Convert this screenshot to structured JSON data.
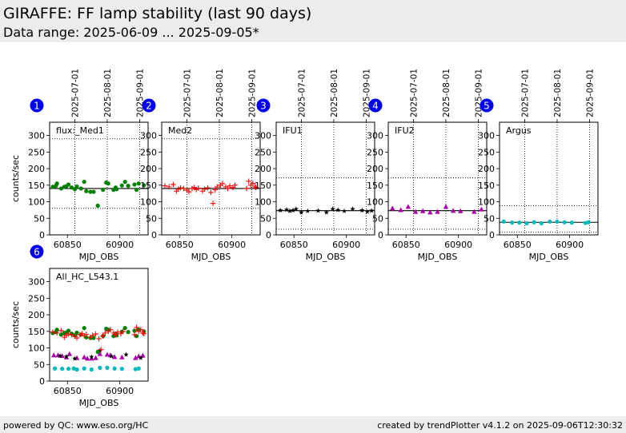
{
  "header": {
    "title": "GIRAFFE: FF lamp stability (last 90 days)",
    "subtitle": "Data range: 2025-06-09 ... 2025-09-05*"
  },
  "footer": {
    "left": "powered by QC: www.eso.org/HC",
    "right": "created by trendPlotter v4.1.2 on 2025-09-06T12:30:32"
  },
  "colors": {
    "med1": "#008000",
    "med2": "#ff0000",
    "ifu1": "#000000",
    "ifu2": "#aa00aa",
    "argus": "#00bbbb",
    "badge": "#0000ee",
    "header_bg": "#ececec"
  },
  "chart_data": [
    {
      "type": "scatter",
      "badge": "1",
      "label": "flux:_Med1",
      "xlabel": "MJD_OBS",
      "ylabel": "counts/sec",
      "xlim": [
        60833,
        60927
      ],
      "ylim": [
        0,
        340
      ],
      "xticks": [
        60850,
        60900
      ],
      "yticks": [
        0,
        50,
        100,
        150,
        200,
        250,
        300
      ],
      "date_ticks": [
        {
          "mjd": 60857,
          "label": "2025-07-01"
        },
        {
          "mjd": 60888,
          "label": "2025-08-01"
        },
        {
          "mjd": 60919,
          "label": "2025-09-01"
        }
      ],
      "hlines": [
        {
          "y": 140,
          "style": "solid"
        },
        {
          "y": 290,
          "style": "dotted"
        },
        {
          "y": 80,
          "style": "dotted"
        }
      ],
      "series": [
        {
          "color_key": "med1",
          "marker": "dot",
          "x": [
            60836,
            60839,
            60840,
            60844,
            60847,
            60849,
            60851,
            60854,
            60857,
            60859,
            60863,
            60866,
            60868,
            60872,
            60875,
            60879,
            60884,
            60887,
            60889,
            60894,
            60896,
            60897,
            60902,
            60905,
            60908,
            60914,
            60916,
            60918,
            60923
          ],
          "y": [
            145,
            148,
            155,
            140,
            145,
            147,
            152,
            143,
            138,
            146,
            140,
            160,
            132,
            130,
            130,
            88,
            136,
            158,
            155,
            136,
            143,
            138,
            149,
            160,
            148,
            152,
            136,
            155,
            150
          ]
        }
      ]
    },
    {
      "type": "scatter",
      "badge": "2",
      "label": "Med2",
      "xlabel": "MJD_OBS",
      "ylabel": "",
      "xlim": [
        60833,
        60927
      ],
      "ylim": [
        0,
        340
      ],
      "xticks": [
        60850,
        60900
      ],
      "yticks": [
        0,
        50,
        100,
        150,
        200,
        250,
        300
      ],
      "date_ticks": [
        {
          "mjd": 60857,
          "label": "2025-07-01"
        },
        {
          "mjd": 60888,
          "label": "2025-08-01"
        },
        {
          "mjd": 60919,
          "label": "2025-09-01"
        }
      ],
      "hlines": [
        {
          "y": 140,
          "style": "solid"
        },
        {
          "y": 290,
          "style": "dotted"
        },
        {
          "y": 80,
          "style": "dotted"
        }
      ],
      "series": [
        {
          "color_key": "med2",
          "marker": "plus",
          "x": [
            60836,
            60840,
            60844,
            60847,
            60849,
            60851,
            60854,
            60857,
            60859,
            60862,
            60864,
            60866,
            60868,
            60872,
            60874,
            60877,
            60880,
            60882,
            60884,
            60886,
            60889,
            60891,
            60894,
            60896,
            60898,
            60901,
            60903,
            60914,
            60916,
            60918,
            60920,
            60922,
            60923
          ],
          "y": [
            148,
            145,
            152,
            132,
            138,
            142,
            140,
            135,
            130,
            140,
            143,
            137,
            141,
            132,
            138,
            142,
            128,
            95,
            136,
            145,
            150,
            155,
            145,
            140,
            148,
            143,
            150,
            140,
            162,
            150,
            155,
            145,
            143
          ]
        }
      ]
    },
    {
      "type": "scatter",
      "badge": "3",
      "label": "IFU1",
      "xlabel": "MJD_OBS",
      "ylabel": "",
      "xlim": [
        60833,
        60927
      ],
      "ylim": [
        0,
        340
      ],
      "xticks": [
        60850,
        60900
      ],
      "yticks": [
        0,
        50,
        100,
        150,
        200,
        250,
        300
      ],
      "date_ticks": [
        {
          "mjd": 60857,
          "label": "2025-07-01"
        },
        {
          "mjd": 60888,
          "label": "2025-08-01"
        },
        {
          "mjd": 60919,
          "label": "2025-09-01"
        }
      ],
      "hlines": [
        {
          "y": 73,
          "style": "solid"
        },
        {
          "y": 172,
          "style": "dotted"
        },
        {
          "y": 17,
          "style": "dotted"
        }
      ],
      "series": [
        {
          "color_key": "ifu1",
          "marker": "star",
          "x": [
            60837,
            60843,
            60846,
            60849,
            60852,
            60857,
            60863,
            60873,
            60881,
            60887,
            60892,
            60898,
            60906,
            60915,
            60920,
            60924
          ],
          "y": [
            74,
            76,
            72,
            74,
            78,
            68,
            72,
            73,
            68,
            78,
            75,
            72,
            78,
            74,
            70,
            73
          ]
        }
      ]
    },
    {
      "type": "scatter",
      "badge": "4",
      "label": "IFU2",
      "xlabel": "MJD_OBS",
      "ylabel": "",
      "xlim": [
        60833,
        60927
      ],
      "ylim": [
        0,
        340
      ],
      "xticks": [
        60850,
        60900
      ],
      "yticks": [
        0,
        50,
        100,
        150,
        200,
        250,
        300
      ],
      "date_ticks": [
        {
          "mjd": 60857,
          "label": "2025-07-01"
        },
        {
          "mjd": 60888,
          "label": "2025-08-01"
        },
        {
          "mjd": 60919,
          "label": "2025-09-01"
        }
      ],
      "hlines": [
        {
          "y": 73,
          "style": "solid"
        },
        {
          "y": 172,
          "style": "dotted"
        },
        {
          "y": 17,
          "style": "dotted"
        }
      ],
      "series": [
        {
          "color_key": "ifu2",
          "marker": "triangle",
          "x": [
            60837,
            60845,
            60852,
            60859,
            60866,
            60873,
            60880,
            60888,
            60895,
            60902,
            60915,
            60922
          ],
          "y": [
            80,
            75,
            85,
            70,
            72,
            68,
            70,
            85,
            73,
            72,
            70,
            77
          ]
        }
      ]
    },
    {
      "type": "scatter",
      "badge": "5",
      "label": "Argus",
      "xlabel": "MJD_OBS",
      "ylabel": "",
      "xlim": [
        60833,
        60927
      ],
      "ylim": [
        0,
        340
      ],
      "xticks": [
        60850,
        60900
      ],
      "yticks": [
        0,
        50,
        100,
        150,
        200,
        250,
        300
      ],
      "date_ticks": [
        {
          "mjd": 60857,
          "label": "2025-07-01"
        },
        {
          "mjd": 60888,
          "label": "2025-08-01"
        },
        {
          "mjd": 60919,
          "label": "2025-09-01"
        }
      ],
      "hlines": [
        {
          "y": 38,
          "style": "solid"
        },
        {
          "y": 88,
          "style": "dotted"
        },
        {
          "y": 8,
          "style": "dotted"
        }
      ],
      "series": [
        {
          "color_key": "argus",
          "marker": "dot",
          "x": [
            60837,
            60845,
            60852,
            60859,
            60866,
            60873,
            60881,
            60888,
            60895,
            60902,
            60915,
            60918
          ],
          "y": [
            40,
            37,
            37,
            35,
            38,
            35,
            40,
            40,
            38,
            37,
            36,
            38
          ]
        }
      ]
    },
    {
      "type": "scatter",
      "badge": "6",
      "label": "All_HC_L543.1",
      "xlabel": "MJD_OBS",
      "ylabel": "counts/sec",
      "xlim": [
        60833,
        60927
      ],
      "ylim": [
        0,
        340
      ],
      "xticks": [
        60850,
        60900
      ],
      "yticks": [
        0,
        50,
        100,
        150,
        200,
        250,
        300
      ],
      "date_ticks": [],
      "hlines": [],
      "series": [
        {
          "color_key": "ifu2",
          "marker": "triangle",
          "x": [
            60837,
            60841,
            60845,
            60849,
            60852,
            60859,
            60866,
            60869,
            60873,
            60877,
            60881,
            60888,
            60891,
            60895,
            60902,
            60915,
            60918,
            60922
          ],
          "y": [
            78,
            78,
            76,
            72,
            82,
            70,
            72,
            68,
            68,
            70,
            82,
            80,
            78,
            73,
            72,
            70,
            75,
            77
          ]
        },
        {
          "color_key": "ifu1",
          "marker": "star",
          "x": [
            60843,
            60849,
            60857,
            60873,
            60881,
            60892,
            60906,
            60920
          ],
          "y": [
            76,
            74,
            68,
            73,
            92,
            75,
            80,
            70
          ]
        },
        {
          "color_key": "argus",
          "marker": "dot",
          "x": [
            60838,
            60845,
            60851,
            60856,
            60859,
            60866,
            60873,
            60881,
            60888,
            60895,
            60902,
            60915,
            60918
          ],
          "y": [
            38,
            37,
            37,
            38,
            35,
            38,
            35,
            40,
            40,
            38,
            37,
            36,
            38
          ]
        },
        {
          "color_key": "med1",
          "marker": "dot",
          "x": [
            60836,
            60839,
            60840,
            60844,
            60847,
            60849,
            60851,
            60854,
            60857,
            60859,
            60863,
            60866,
            60868,
            60872,
            60875,
            60879,
            60884,
            60887,
            60889,
            60894,
            60896,
            60897,
            60902,
            60905,
            60908,
            60914,
            60916,
            60918,
            60923
          ],
          "y": [
            145,
            148,
            155,
            140,
            145,
            147,
            152,
            143,
            138,
            146,
            140,
            160,
            132,
            130,
            130,
            88,
            136,
            158,
            155,
            136,
            143,
            138,
            149,
            160,
            148,
            152,
            136,
            155,
            150
          ]
        },
        {
          "color_key": "med2",
          "marker": "plus",
          "x": [
            60836,
            60840,
            60844,
            60847,
            60849,
            60851,
            60854,
            60857,
            60859,
            60862,
            60864,
            60866,
            60868,
            60872,
            60874,
            60877,
            60880,
            60882,
            60884,
            60886,
            60889,
            60891,
            60894,
            60896,
            60898,
            60901,
            60903,
            60914,
            60916,
            60918,
            60920,
            60922,
            60923
          ],
          "y": [
            148,
            145,
            152,
            132,
            138,
            142,
            140,
            135,
            130,
            140,
            143,
            137,
            141,
            132,
            138,
            142,
            128,
            95,
            136,
            145,
            150,
            155,
            145,
            140,
            148,
            143,
            150,
            140,
            162,
            150,
            155,
            145,
            143
          ]
        }
      ]
    }
  ]
}
